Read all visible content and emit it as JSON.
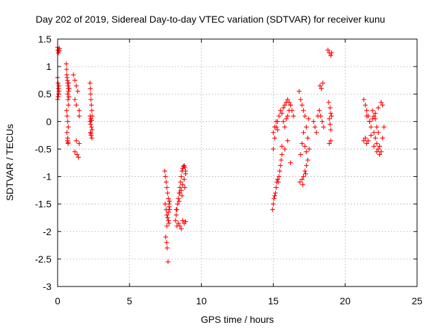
{
  "chart_data": {
    "type": "scatter",
    "title": "Day 202 of 2019, Sidereal Day-to-day VTEC variation (SDTVAR) for receiver kunu",
    "xlabel": "GPS time / hours",
    "ylabel": "SDTVAR / TECUs",
    "xlim": [
      0,
      25
    ],
    "ylim": [
      -3,
      1.5
    ],
    "xticks": [
      0,
      5,
      10,
      15,
      20,
      25
    ],
    "xtick_labels": [
      "0",
      "5",
      "10",
      "15",
      "20",
      "25"
    ],
    "yticks": [
      1.5,
      1,
      0.5,
      0,
      -0.5,
      -1,
      -1.5,
      -2,
      -2.5,
      -3
    ],
    "ytick_labels": [
      "1.5",
      "1",
      "0.5",
      "0",
      "-0.5",
      "-1",
      "-1.5",
      "-2",
      "-2.5",
      "-3"
    ],
    "grid": true,
    "marker": "+",
    "color": "#ff0000",
    "series": [
      {
        "name": "SDTVAR",
        "x": [
          0.0,
          0.02,
          0.05,
          0.08,
          0.1,
          0.12,
          0.0,
          0.03,
          0.06,
          0.09,
          0.0,
          0.04,
          0.07,
          0.1,
          0.6,
          0.62,
          0.64,
          0.66,
          0.68,
          0.7,
          0.72,
          0.74,
          0.7,
          0.72,
          0.75,
          0.62,
          0.66,
          0.7,
          0.74,
          0.76,
          0.78,
          0.65,
          0.7,
          0.72,
          0.68,
          0.73,
          0.76,
          0.8,
          1.1,
          1.2,
          1.3,
          1.4,
          1.2,
          1.3,
          1.5,
          1.2,
          1.35,
          1.45,
          1.5,
          1.3,
          1.5,
          2.25,
          2.28,
          2.3,
          2.32,
          2.35,
          2.38,
          2.4,
          2.25,
          2.3,
          2.35,
          2.4,
          2.28,
          2.33,
          2.38,
          2.3,
          2.36,
          2.32,
          2.26,
          7.45,
          7.5,
          7.55,
          7.6,
          7.65,
          7.7,
          7.75,
          7.8,
          7.48,
          7.55,
          7.6,
          7.7,
          7.75,
          7.6,
          7.65,
          7.7,
          7.75,
          7.8,
          7.52,
          7.58,
          7.62,
          7.68,
          8.2,
          8.25,
          8.3,
          8.35,
          8.4,
          8.45,
          8.5,
          8.55,
          8.6,
          8.65,
          8.7,
          8.75,
          8.8,
          8.85,
          8.9,
          8.3,
          8.4,
          8.5,
          8.6,
          8.7,
          8.8,
          8.9,
          8.5,
          8.6,
          8.7,
          8.8,
          8.9,
          8.25,
          8.45,
          8.65,
          8.85,
          14.95,
          15.0,
          15.05,
          15.1,
          15.15,
          15.2,
          15.25,
          15.3,
          15.35,
          15.4,
          15.45,
          15.5,
          15.55,
          15.6,
          15.0,
          15.1,
          15.2,
          15.3,
          15.4,
          15.5,
          15.6,
          15.7,
          15.8,
          15.9,
          16.0,
          16.1,
          16.2,
          15.7,
          15.8,
          15.9,
          16.0,
          16.1,
          16.2,
          16.3,
          16.4,
          15.6,
          15.8,
          16.0,
          16.2,
          15.0,
          15.1,
          15.2,
          15.3,
          16.8,
          16.9,
          17.0,
          17.1,
          17.2,
          17.3,
          17.4,
          17.5,
          16.9,
          17.0,
          17.1,
          17.2,
          17.3,
          17.0,
          17.1,
          17.2,
          17.3,
          17.4,
          16.85,
          17.05,
          17.25,
          17.45,
          17.8,
          17.9,
          18.0,
          18.1,
          18.2,
          18.3,
          18.4,
          18.5,
          18.25,
          18.35,
          18.45,
          18.8,
          18.9,
          19.0,
          19.05,
          18.85,
          18.95,
          19.0,
          18.9,
          18.95,
          19.0,
          19.05,
          18.9,
          19.0,
          21.3,
          21.4,
          21.5,
          21.6,
          21.7,
          21.8,
          21.9,
          22.0,
          22.1,
          22.2,
          22.3,
          22.4,
          22.5,
          22.6,
          22.7,
          21.4,
          21.6,
          21.8,
          22.0,
          22.2,
          22.4,
          22.6,
          21.5,
          21.7,
          21.9,
          22.1,
          22.3,
          22.5,
          22.0,
          22.1,
          22.2,
          22.3,
          21.3,
          21.5
        ],
        "y": [
          1.35,
          1.3,
          1.25,
          1.3,
          1.28,
          1.33,
          0.8,
          0.7,
          0.6,
          0.65,
          0.4,
          0.45,
          0.5,
          0.55,
          1.05,
          0.95,
          0.85,
          0.8,
          0.75,
          0.7,
          0.65,
          0.6,
          0.5,
          0.4,
          0.3,
          0.2,
          0.1,
          0.0,
          -0.1,
          0.55,
          0.45,
          -0.2,
          -0.3,
          -0.4,
          -0.35,
          -0.38,
          0.7,
          0.6,
          0.85,
          0.75,
          0.65,
          0.55,
          0.4,
          0.3,
          0.2,
          -0.55,
          -0.6,
          -0.65,
          -0.4,
          -0.35,
          0.1,
          0.7,
          0.6,
          0.5,
          0.4,
          0.3,
          0.2,
          0.1,
          0.0,
          -0.05,
          -0.1,
          -0.15,
          -0.2,
          -0.25,
          -0.3,
          0.05,
          0.02,
          -0.22,
          0.1,
          -0.9,
          -1.0,
          -1.1,
          -1.2,
          -1.3,
          -1.4,
          -1.5,
          -1.6,
          -1.5,
          -1.6,
          -1.7,
          -1.8,
          -1.85,
          -1.9,
          -1.75,
          -1.65,
          -1.55,
          -1.45,
          -2.1,
          -2.2,
          -2.3,
          -2.55,
          -1.8,
          -1.7,
          -1.6,
          -1.5,
          -1.4,
          -1.3,
          -1.2,
          -1.1,
          -1.0,
          -0.9,
          -0.85,
          -0.82,
          -0.8,
          -0.83,
          -0.9,
          -1.9,
          -1.85,
          -1.9,
          -1.95,
          -1.8,
          -1.85,
          -1.82,
          -1.3,
          -1.25,
          -1.15,
          -1.05,
          -0.95,
          -1.6,
          -1.45,
          -1.35,
          -1.2,
          -1.6,
          -1.5,
          -1.4,
          -1.35,
          -1.3,
          -1.2,
          -1.1,
          -1.05,
          -1.1,
          -1.0,
          -0.9,
          -0.8,
          -0.7,
          -0.6,
          -0.5,
          -0.3,
          -0.1,
          0.0,
          0.1,
          0.2,
          0.15,
          0.0,
          -0.1,
          0.05,
          0.1,
          0.2,
          0.3,
          0.25,
          0.3,
          0.35,
          0.4,
          0.35,
          0.3,
          0.2,
          0.1,
          -0.45,
          -0.5,
          -0.35,
          -0.75,
          -0.2,
          -0.1,
          0.0,
          -0.15,
          0.55,
          0.4,
          0.3,
          0.2,
          0.1,
          -0.1,
          -0.3,
          -0.5,
          -0.6,
          -0.4,
          -0.2,
          -0.45,
          -0.55,
          -1.05,
          -1.0,
          -0.9,
          -0.8,
          -0.7,
          -1.1,
          -1.15,
          -0.95,
          0.05,
          0.0,
          -0.1,
          -0.2,
          0.1,
          0.2,
          0.1,
          0.0,
          -0.1,
          0.65,
          0.6,
          0.7,
          1.3,
          1.25,
          1.2,
          1.25,
          0.35,
          0.25,
          0.15,
          0.05,
          -0.05,
          -0.15,
          0.1,
          -0.4,
          -0.35,
          0.4,
          0.3,
          0.2,
          0.1,
          0.0,
          -0.1,
          0.05,
          -0.2,
          -0.3,
          -0.4,
          -0.5,
          -0.6,
          -0.55,
          -0.3,
          -0.1,
          -0.3,
          -0.35,
          -0.25,
          -0.45,
          -0.55,
          -0.45,
          0.3,
          0.1,
          0.0,
          0.2,
          0.15,
          0.25,
          0.35,
          0.1,
          0.05,
          -0.1,
          -0.2,
          -0.35,
          -0.4
        ]
      }
    ]
  }
}
